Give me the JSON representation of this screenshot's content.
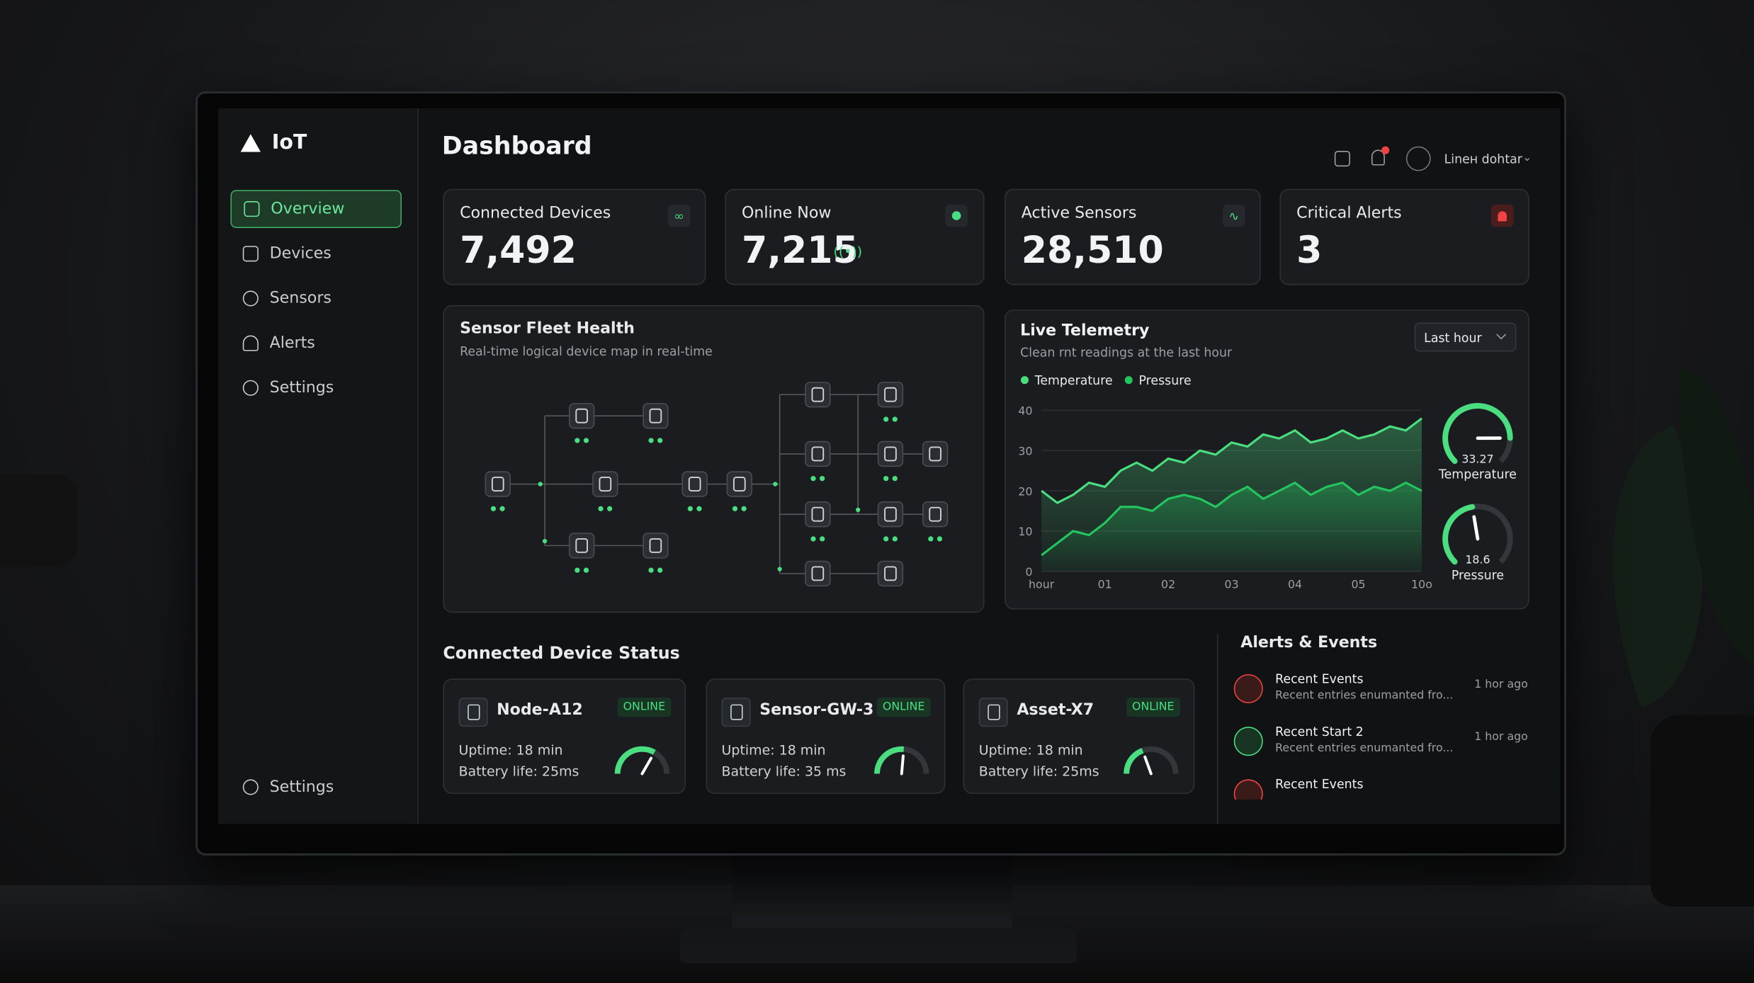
{
  "sidebar": {
    "brand": "IoT",
    "nav": [
      "Overview",
      "Devices",
      "Sensors",
      "Alerts",
      "Settings"
    ],
    "footer": "Settings"
  },
  "header": {
    "title": "Dashboard",
    "user": "Linен dohtar"
  },
  "stats": [
    {
      "label": "Connected Devices",
      "value": "7,492"
    },
    {
      "label": "Online Now",
      "value": "7,215"
    },
    {
      "label": "Active Sensors",
      "value": "28,510"
    },
    {
      "label": "Critical Alerts",
      "value": "3"
    }
  ],
  "fleet": {
    "title": "Sensor Fleet Health",
    "subtitle": "Real-time logical device map in real-time"
  },
  "chart_data": {
    "type": "line",
    "title": "Live Telemetry",
    "subtitle": "Clean rnt readings at the last hour",
    "range": "Last hour",
    "categories": [
      "hour",
      null,
      null,
      null,
      "01",
      null,
      null,
      null,
      "02",
      null,
      null,
      null,
      "03",
      null,
      null,
      null,
      "04",
      null,
      null,
      null,
      "05",
      null,
      null,
      null,
      "10o"
    ],
    "series": [
      {
        "name": "Temperature",
        "color": "#4ade80",
        "values": [
          20,
          17,
          19,
          22,
          21,
          25,
          27,
          25,
          28,
          27,
          30,
          29,
          32,
          31,
          34,
          33,
          35,
          32,
          33,
          35,
          33,
          34,
          36,
          35,
          38
        ]
      },
      {
        "name": "Pressure",
        "color": "#22c55e",
        "values": [
          4,
          7,
          10,
          9,
          12,
          16,
          16,
          15,
          18,
          19,
          18,
          16,
          19,
          21,
          18,
          20,
          22,
          19,
          21,
          22,
          19,
          21,
          20,
          22,
          20
        ]
      }
    ],
    "ylim": [
      0,
      40
    ],
    "yticks": [
      0,
      10,
      20,
      30,
      40
    ],
    "grid": true,
    "gauges": [
      {
        "name": "Temperature",
        "value": 33.27
      },
      {
        "name": "Pressure",
        "value": 18.6
      }
    ]
  },
  "devices": {
    "title": "Connected Device Status",
    "items": [
      {
        "name": "Node-A12",
        "status": "ONLINE",
        "uptime": "Uptime: 18 min",
        "battery": "Battery life: 25ms"
      },
      {
        "name": "Sensor-GW-3",
        "status": "ONLINE",
        "uptime": "Uptime: 18 min",
        "battery": "Battery life: 35 ms"
      },
      {
        "name": "Asset-X7",
        "status": "ONLINE",
        "uptime": "Uptime: 18 min",
        "battery": "Battery life: 25ms"
      }
    ]
  },
  "alerts": {
    "title": "Alerts & Events",
    "items": [
      {
        "title": "Recent Events",
        "desc": "Recent entries enumanted fro...",
        "time": "1 hor ago"
      },
      {
        "title": "Recent Start 2",
        "desc": "Recent entries enumanted fro...",
        "time": "1 hor ago"
      },
      {
        "title": "Recent Events"
      }
    ]
  }
}
